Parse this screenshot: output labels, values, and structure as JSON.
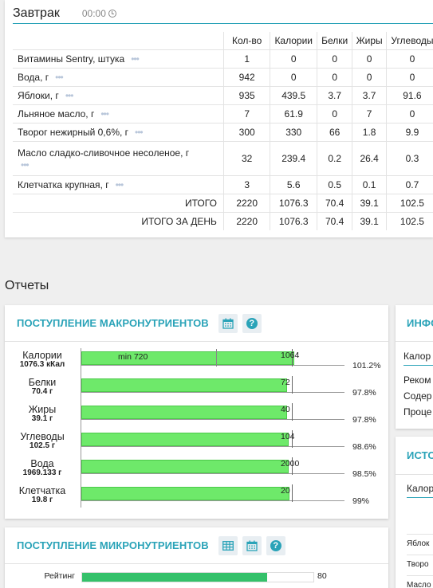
{
  "meal": {
    "title": "Завтрак",
    "time": "00:00",
    "columns": {
      "qty": "Кол-во",
      "calories": "Калории",
      "protein": "Белки",
      "fat": "Жиры",
      "carbs": "Углеводы"
    },
    "rows": [
      {
        "name": "Витамины Sentry, штука",
        "qty": "1",
        "calories": "0",
        "protein": "0",
        "fat": "0",
        "carbs": "0"
      },
      {
        "name": "Вода, г",
        "qty": "942",
        "calories": "0",
        "protein": "0",
        "fat": "0",
        "carbs": "0"
      },
      {
        "name": "Яблоки, г",
        "qty": "935",
        "calories": "439.5",
        "protein": "3.7",
        "fat": "3.7",
        "carbs": "91.6"
      },
      {
        "name": "Льняное масло, г",
        "qty": "7",
        "calories": "61.9",
        "protein": "0",
        "fat": "7",
        "carbs": "0"
      },
      {
        "name": "Творог нежирный 0,6%, г",
        "qty": "300",
        "calories": "330",
        "protein": "66",
        "fat": "1.8",
        "carbs": "9.9"
      },
      {
        "name": "Масло сладко-сливочное несоленое, г",
        "qty": "32",
        "calories": "239.4",
        "protein": "0.2",
        "fat": "26.4",
        "carbs": "0.3"
      },
      {
        "name": "Клетчатка крупная, г",
        "qty": "3",
        "calories": "5.6",
        "protein": "0.5",
        "fat": "0.1",
        "carbs": "0.7"
      }
    ],
    "more_glyph": "•••",
    "total": {
      "label": "ИТОГО",
      "qty": "2220",
      "calories": "1076.3",
      "protein": "70.4",
      "fat": "39.1",
      "carbs": "102.5"
    },
    "day_total": {
      "label": "ИТОГО ЗА ДЕНЬ",
      "qty": "2220",
      "calories": "1076.3",
      "protein": "70.4",
      "fat": "39.1",
      "carbs": "102.5"
    }
  },
  "reports": {
    "title": "Отчеты",
    "macro": {
      "title": "ПОСТУПЛЕНИЕ МАКРОНУТРИЕНТОВ",
      "icons": [
        "calendar-icon",
        "help-icon"
      ],
      "help_glyph": "?",
      "min_label": "min 720",
      "min_fraction": 0.64,
      "bars": [
        {
          "name": "Калории",
          "amount": "1076.3 кКал",
          "target": "1064",
          "percent_label": "101.2%",
          "fill": 1.012
        },
        {
          "name": "Белки",
          "amount": "70.4 г",
          "target": "72",
          "percent_label": "97.8%",
          "fill": 0.978
        },
        {
          "name": "Жиры",
          "amount": "39.1 г",
          "target": "40",
          "percent_label": "97.8%",
          "fill": 0.978
        },
        {
          "name": "Углеводы",
          "amount": "102.5 г",
          "target": "104",
          "percent_label": "98.6%",
          "fill": 0.986
        },
        {
          "name": "Вода",
          "amount": "1969.133 г",
          "target": "2000",
          "percent_label": "98.5%",
          "fill": 0.985
        },
        {
          "name": "Клетчатка",
          "amount": "19.8 г",
          "target": "20",
          "percent_label": "99%",
          "fill": 0.99
        }
      ]
    },
    "micro": {
      "title": "ПОСТУПЛЕНИЕ МИКРОНУТРИЕНТОВ",
      "icons": [
        "table-icon",
        "calendar-icon",
        "help-icon"
      ],
      "help_glyph": "?",
      "rating": {
        "label": "Рейтинг",
        "value": "80",
        "fill": 0.8
      }
    },
    "info": {
      "title": "ИНФО",
      "sub": "Калор",
      "lines": [
        "Реком",
        "Содер",
        "Проце"
      ]
    },
    "sources": {
      "title": "ИСТО",
      "sub": "Калор",
      "items": [
        "Яблок",
        "Творо",
        "Масло"
      ]
    }
  },
  "colors": {
    "accent": "#2aa3b8",
    "bar_fill": "#6ee96a",
    "rating_fill": "#34c16a",
    "icon_bg": "#e8eef2"
  }
}
